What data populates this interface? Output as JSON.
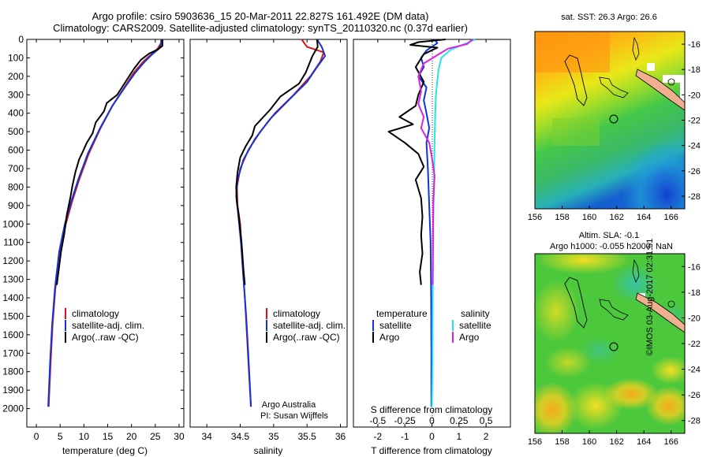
{
  "title": {
    "line1": "Argo profile: csiro 5903636_15 20-Mar-2011 22.827S 161.492E (DM data)",
    "line2": "Climatology: CARS2009. Satellite-adjusted climatology: synTS_20110320.nc (0.37d earlier)"
  },
  "stamp": "©IMOS 03-Aug-2017 02:31:51",
  "colors": {
    "climatology": "#dd1111",
    "satellite": "#1133dd",
    "argo": "#000000",
    "sal_satellite": "#22e6e6",
    "sal_argo": "#e020e0"
  },
  "chart_data": [
    {
      "type": "line",
      "name": "temperature-profile",
      "xlabel": "temperature (deg C)",
      "ylabel": "",
      "xlim": [
        -2,
        31
      ],
      "ylim": [
        2100,
        0
      ],
      "xticks": [
        0,
        5,
        10,
        15,
        20,
        25,
        30
      ],
      "yticks": [
        0,
        100,
        200,
        300,
        400,
        500,
        600,
        700,
        800,
        900,
        1000,
        1100,
        1200,
        1300,
        1400,
        1500,
        1600,
        1700,
        1800,
        1900,
        2000
      ],
      "legend": [
        "climatology",
        "satellite-adj. clim.",
        "Argo(..raw -QC)"
      ],
      "legend_position": "lower-middle",
      "series": [
        {
          "name": "climatology",
          "color_key": "climatology",
          "points": [
            [
              26.2,
              0
            ],
            [
              26.2,
              20
            ],
            [
              25.5,
              50
            ],
            [
              24.2,
              80
            ],
            [
              22.5,
              120
            ],
            [
              20.5,
              180
            ],
            [
              18.5,
              260
            ],
            [
              16,
              360
            ],
            [
              13.5,
              480
            ],
            [
              11,
              620
            ],
            [
              9,
              760
            ],
            [
              7.5,
              880
            ],
            [
              6.2,
              1000
            ],
            [
              5,
              1150
            ],
            [
              4,
              1350
            ],
            [
              3.4,
              1550
            ],
            [
              3,
              1750
            ],
            [
              2.6,
              1990
            ]
          ]
        },
        {
          "name": "satellite-adj. clim.",
          "color_key": "satellite",
          "points": [
            [
              26.3,
              0
            ],
            [
              26.3,
              20
            ],
            [
              25.8,
              50
            ],
            [
              24.4,
              80
            ],
            [
              22.8,
              120
            ],
            [
              20.8,
              180
            ],
            [
              18.6,
              260
            ],
            [
              16,
              360
            ],
            [
              13.4,
              480
            ],
            [
              10.8,
              620
            ],
            [
              8.8,
              760
            ],
            [
              7.3,
              880
            ],
            [
              6,
              1000
            ],
            [
              4.8,
              1150
            ],
            [
              3.9,
              1350
            ],
            [
              3.3,
              1550
            ],
            [
              2.9,
              1750
            ],
            [
              2.5,
              1990
            ]
          ]
        },
        {
          "name": "Argo(..raw -QC)",
          "color_key": "argo",
          "points": [
            [
              26.5,
              0
            ],
            [
              26.5,
              35
            ],
            [
              25.5,
              55
            ],
            [
              23.8,
              75
            ],
            [
              22,
              110
            ],
            [
              20.5,
              160
            ],
            [
              19,
              220
            ],
            [
              17,
              300
            ],
            [
              14.8,
              345
            ],
            [
              14.2,
              390
            ],
            [
              12.5,
              450
            ],
            [
              11.8,
              510
            ],
            [
              10.6,
              560
            ],
            [
              9.9,
              600
            ],
            [
              9,
              650
            ],
            [
              8.2,
              720
            ],
            [
              7.6,
              790
            ],
            [
              7.2,
              850
            ],
            [
              6.8,
              900
            ],
            [
              6.4,
              950
            ],
            [
              5.9,
              1050
            ],
            [
              5.2,
              1150
            ],
            [
              4.7,
              1250
            ],
            [
              4.3,
              1330
            ]
          ]
        }
      ]
    },
    {
      "type": "line",
      "name": "salinity-profile",
      "xlabel": "salinity",
      "ylabel": "",
      "xlim": [
        33.75,
        36.1
      ],
      "ylim": [
        2100,
        0
      ],
      "xticks": [
        34,
        34.5,
        35,
        35.5,
        36
      ],
      "xtick_labels": [
        "34",
        "34.5",
        "35",
        "35.5",
        "36"
      ],
      "legend": [
        "climatology",
        "satellite-adj. clim.",
        "Argo(..raw -QC)"
      ],
      "legend_position": "lower-middle",
      "annotation": [
        "Argo Australia",
        "PI: Susan Wijffels"
      ],
      "series": [
        {
          "name": "climatology",
          "color_key": "climatology",
          "points": [
            [
              35.42,
              0
            ],
            [
              35.5,
              40
            ],
            [
              35.75,
              70
            ],
            [
              35.7,
              120
            ],
            [
              35.55,
              200
            ],
            [
              35.3,
              300
            ],
            [
              35.02,
              400
            ],
            [
              34.8,
              500
            ],
            [
              34.62,
              600
            ],
            [
              34.5,
              700
            ],
            [
              34.45,
              800
            ],
            [
              34.46,
              900
            ],
            [
              34.5,
              1000
            ],
            [
              34.53,
              1200
            ],
            [
              34.57,
              1400
            ],
            [
              34.6,
              1600
            ],
            [
              34.63,
              1800
            ],
            [
              34.66,
              1990
            ]
          ]
        },
        {
          "name": "satellite-adj. clim.",
          "color_key": "satellite",
          "points": [
            [
              35.65,
              0
            ],
            [
              35.72,
              40
            ],
            [
              35.77,
              90
            ],
            [
              35.65,
              150
            ],
            [
              35.5,
              230
            ],
            [
              35.25,
              320
            ],
            [
              34.95,
              430
            ],
            [
              34.72,
              540
            ],
            [
              34.55,
              650
            ],
            [
              34.46,
              760
            ],
            [
              34.44,
              850
            ],
            [
              34.47,
              950
            ],
            [
              34.51,
              1100
            ],
            [
              34.55,
              1300
            ],
            [
              34.59,
              1500
            ],
            [
              34.62,
              1700
            ],
            [
              34.66,
              1990
            ]
          ]
        },
        {
          "name": "Argo(..raw -QC)",
          "color_key": "argo",
          "points": [
            [
              35.65,
              0
            ],
            [
              35.66,
              40
            ],
            [
              35.58,
              90
            ],
            [
              35.48,
              180
            ],
            [
              35.38,
              240
            ],
            [
              35.1,
              310
            ],
            [
              34.95,
              380
            ],
            [
              34.72,
              470
            ],
            [
              34.68,
              520
            ],
            [
              34.58,
              580
            ],
            [
              34.5,
              640
            ],
            [
              34.46,
              720
            ],
            [
              34.44,
              800
            ],
            [
              34.45,
              880
            ],
            [
              34.48,
              960
            ],
            [
              34.52,
              1100
            ],
            [
              34.55,
              1250
            ],
            [
              34.57,
              1330
            ]
          ]
        }
      ]
    },
    {
      "type": "line",
      "name": "difference-profile",
      "xlabel": "T difference from climatology",
      "xlabel2": "S difference from climatology",
      "xlim": [
        -2.9,
        2.9
      ],
      "ylim": [
        2100,
        0
      ],
      "xticks": [
        -2,
        -1,
        0,
        1,
        2
      ],
      "xtick_labels": [
        "-2",
        "-1",
        "0",
        "1",
        "2"
      ],
      "top_ticks": [
        -2,
        -1,
        0,
        1,
        2
      ],
      "top_tick_labels": [
        "-0.5",
        "-0.25",
        "0",
        "0.25",
        "0.5"
      ],
      "legend_temperature": [
        "temperature",
        "satellite",
        "Argo"
      ],
      "legend_salinity": [
        "salinity",
        "satellite",
        "Argo"
      ],
      "series": [
        {
          "name": "T satellite",
          "color_key": "satellite",
          "points": [
            [
              0.1,
              0
            ],
            [
              0.2,
              20
            ],
            [
              -0.2,
              60
            ],
            [
              -0.4,
              100
            ],
            [
              -0.3,
              150
            ],
            [
              -0.5,
              200
            ],
            [
              -0.2,
              260
            ],
            [
              -0.3,
              330
            ],
            [
              -0.2,
              400
            ],
            [
              -0.1,
              480
            ],
            [
              -0.2,
              560
            ],
            [
              -0.15,
              700
            ],
            [
              -0.1,
              900
            ],
            [
              -0.05,
              1100
            ],
            [
              -0.03,
              1400
            ],
            [
              -0.02,
              1700
            ],
            [
              -0.02,
              1990
            ]
          ]
        },
        {
          "name": "T Argo",
          "color_key": "argo",
          "points": [
            [
              0.5,
              0
            ],
            [
              -0.5,
              15
            ],
            [
              -0.8,
              30
            ],
            [
              0.2,
              45
            ],
            [
              -0.3,
              80
            ],
            [
              -0.6,
              150
            ],
            [
              -0.3,
              230
            ],
            [
              -0.5,
              300
            ],
            [
              -0.6,
              360
            ],
            [
              -1.2,
              420
            ],
            [
              -0.7,
              460
            ],
            [
              -1.6,
              500
            ],
            [
              -1.0,
              560
            ],
            [
              -0.5,
              620
            ],
            [
              -0.3,
              690
            ],
            [
              -0.6,
              760
            ],
            [
              -0.4,
              860
            ],
            [
              -0.35,
              960
            ],
            [
              -0.4,
              1060
            ],
            [
              -0.35,
              1160
            ],
            [
              -0.45,
              1260
            ],
            [
              -0.4,
              1330
            ]
          ]
        },
        {
          "name": "S satellite",
          "color_key": "sal_satellite",
          "points": [
            [
              1.6,
              0
            ],
            [
              1.2,
              25
            ],
            [
              0.7,
              55
            ],
            [
              0.35,
              100
            ],
            [
              0.25,
              160
            ],
            [
              0.2,
              220
            ],
            [
              0.15,
              300
            ],
            [
              0.12,
              420
            ],
            [
              0.1,
              550
            ],
            [
              0.08,
              750
            ],
            [
              0.05,
              1000
            ],
            [
              0.03,
              1400
            ],
            [
              0.02,
              1800
            ],
            [
              0.0,
              1990
            ]
          ]
        },
        {
          "name": "S Argo",
          "color_key": "sal_argo",
          "points": [
            [
              1.5,
              0
            ],
            [
              1.3,
              25
            ],
            [
              0.6,
              50
            ],
            [
              0.2,
              85
            ],
            [
              -0.3,
              130
            ],
            [
              -0.5,
              200
            ],
            [
              -0.4,
              280
            ],
            [
              -0.5,
              350
            ],
            [
              -0.3,
              420
            ],
            [
              -0.4,
              480
            ],
            [
              -0.1,
              560
            ],
            [
              0.0,
              640
            ],
            [
              0.1,
              740
            ],
            [
              0.05,
              880
            ],
            [
              0.04,
              1100
            ],
            [
              0.03,
              1330
            ]
          ]
        }
      ]
    },
    {
      "type": "heatmap",
      "name": "sst-map",
      "title": "sat. SST: 26.3 Argo: 26.6",
      "xlim": [
        156,
        167
      ],
      "ylim": [
        -29,
        -15
      ],
      "xticks": [
        156,
        158,
        160,
        162,
        164,
        166
      ],
      "yticks": [
        -16,
        -18,
        -20,
        -22,
        -24,
        -26,
        -28
      ],
      "marker": {
        "lon": 161.49,
        "lat": -22.83
      }
    },
    {
      "type": "heatmap",
      "name": "sla-map",
      "title": "Altim. SLA: -0.1",
      "subtitle": "Argo h1000: -0.055 h2000: NaN",
      "xlim": [
        156,
        167
      ],
      "ylim": [
        -29,
        -15
      ],
      "xticks": [
        156,
        158,
        160,
        162,
        164,
        166
      ],
      "yticks": [
        -16,
        -18,
        -20,
        -22,
        -24,
        -26,
        -28
      ],
      "marker": {
        "lon": 161.49,
        "lat": -22.83
      }
    }
  ]
}
